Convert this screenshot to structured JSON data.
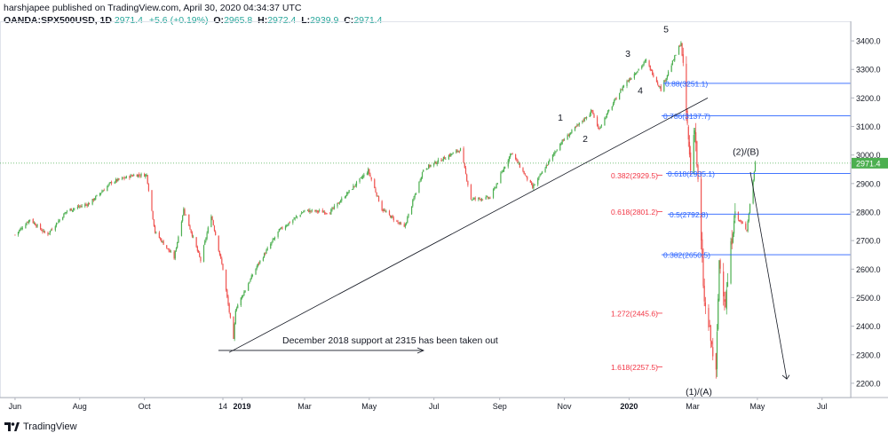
{
  "header": {
    "publisher": "harshjapee published on TradingView.com, April 30, 2020 04:34:37 UTC",
    "symbol": "OANDA:SPX500USD, 1D",
    "last": "2971.4",
    "change": "+5.6 (+0.19%)",
    "open_label": "O:",
    "open": "2965.8",
    "high_label": "H:",
    "high": "2972.4",
    "low_label": "L:",
    "low": "2939.9",
    "close_label": "C:",
    "close": "2971.4"
  },
  "footer": {
    "brand": "TradingView"
  },
  "colors": {
    "up": "#4caf50",
    "down": "#ef5350",
    "fib_line": "#2962ff",
    "fib_text_blue": "#2962ff",
    "fib_text_red": "#f23645",
    "price_line": "#4caf50",
    "axis_text": "#131722"
  },
  "chart_data": {
    "type": "candlestick",
    "symbol": "OANDA:SPX500USD",
    "interval": "1D",
    "ylim": [
      2150,
      3450
    ],
    "y_ticks": [
      "3400.0",
      "3300.0",
      "3200.0",
      "3100.0",
      "3000.0",
      "2900.0",
      "2800.0",
      "2700.0",
      "2600.0",
      "2500.0",
      "2400.0",
      "2300.0",
      "2200.0"
    ],
    "x_ticks": [
      "Jun",
      "Aug",
      "Oct",
      "14",
      "2019",
      "Mar",
      "May",
      "Jul",
      "Sep",
      "Nov",
      "2020",
      "Mar",
      "May",
      "Jul"
    ],
    "last_price": "2971.4",
    "price_series_sketch": [
      [
        "2018-06-01",
        2720
      ],
      [
        "2018-06-15",
        2775
      ],
      [
        "2018-07-01",
        2720
      ],
      [
        "2018-07-20",
        2805
      ],
      [
        "2018-08-10",
        2830
      ],
      [
        "2018-08-31",
        2905
      ],
      [
        "2018-09-21",
        2930
      ],
      [
        "2018-10-03",
        2930
      ],
      [
        "2018-10-11",
        2730
      ],
      [
        "2018-10-29",
        2640
      ],
      [
        "2018-11-07",
        2810
      ],
      [
        "2018-11-23",
        2630
      ],
      [
        "2018-12-03",
        2790
      ],
      [
        "2018-12-14",
        2600
      ],
      [
        "2018-12-24",
        2350
      ],
      [
        "2018-12-26",
        2460
      ],
      [
        "2019-01-15",
        2610
      ],
      [
        "2019-02-05",
        2735
      ],
      [
        "2019-03-01",
        2805
      ],
      [
        "2019-03-25",
        2800
      ],
      [
        "2019-04-30",
        2945
      ],
      [
        "2019-05-13",
        2810
      ],
      [
        "2019-06-03",
        2745
      ],
      [
        "2019-06-21",
        2950
      ],
      [
        "2019-07-26",
        3020
      ],
      [
        "2019-08-05",
        2845
      ],
      [
        "2019-08-23",
        2850
      ],
      [
        "2019-09-12",
        3010
      ],
      [
        "2019-10-02",
        2885
      ],
      [
        "2019-10-28",
        3040
      ],
      [
        "2019-11-27",
        3155
      ],
      [
        "2019-12-03",
        3090
      ],
      [
        "2019-12-27",
        3245
      ],
      [
        "2020-01-17",
        3330
      ],
      [
        "2020-01-31",
        3230
      ],
      [
        "2020-02-19",
        3395
      ],
      [
        "2020-02-28",
        2950
      ],
      [
        "2020-03-03",
        3110
      ],
      [
        "2020-03-12",
        2480
      ],
      [
        "2020-03-16",
        2400
      ],
      [
        "2020-03-23",
        2230
      ],
      [
        "2020-03-26",
        2630
      ],
      [
        "2020-04-01",
        2480
      ],
      [
        "2020-04-09",
        2790
      ],
      [
        "2020-04-21",
        2740
      ],
      [
        "2020-04-29",
        2972
      ]
    ],
    "fib_levels_blue": [
      {
        "label": "0.88(3251.1)",
        "value": 3251.1
      },
      {
        "label": "0.786(3137.7)",
        "value": 3137.7
      },
      {
        "label": "0.618(2935.1)",
        "value": 2935.1
      },
      {
        "label": "0.5(2792.8)",
        "value": 2792.8
      },
      {
        "label": "0.382(2650.5)",
        "value": 2650.5
      }
    ],
    "fib_levels_red": [
      {
        "label": "0.382(2929.5)",
        "value": 2929.5
      },
      {
        "label": "0.618(2801.2)",
        "value": 2801.2
      },
      {
        "label": "1.272(2445.6)",
        "value": 2445.6
      },
      {
        "label": "1.618(2257.5)",
        "value": 2257.5
      }
    ],
    "wave_labels": [
      "1",
      "2",
      "3",
      "4",
      "5",
      "(2)/(B)",
      "(1)/(A)"
    ],
    "annotation": "December 2018 support at 2315 has been taken out"
  }
}
